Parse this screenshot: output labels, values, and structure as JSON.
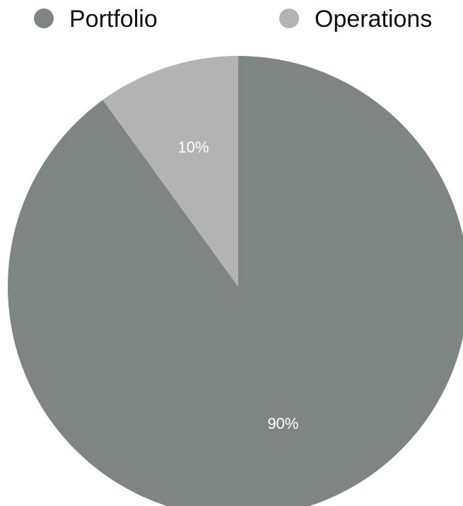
{
  "chart_data": {
    "type": "pie",
    "categories": [
      "Portfolio",
      "Operations"
    ],
    "values": [
      90,
      10
    ],
    "value_labels": [
      "90%",
      "10%"
    ],
    "colors": [
      "#7f8582",
      "#b3b3b3"
    ],
    "legend": [
      "Portfolio",
      "Operations"
    ],
    "legend_position": "top"
  }
}
